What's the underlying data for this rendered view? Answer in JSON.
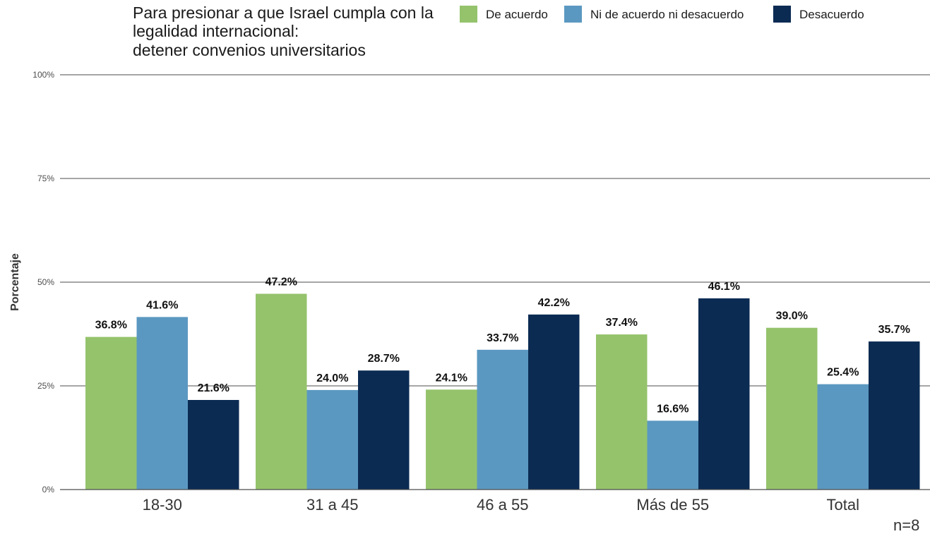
{
  "chart_data": {
    "type": "bar",
    "title_lines": [
      "Para presionar a que Israel cumpla con la",
      "legalidad internacional:",
      "detener convenios universitarios"
    ],
    "ylabel": "Porcentaje",
    "xlabel": "",
    "ylim": [
      0,
      100
    ],
    "yticks": [
      "0%",
      "25%",
      "50%",
      "75%",
      "100%"
    ],
    "ytick_values": [
      0,
      25,
      50,
      75,
      100
    ],
    "grid": true,
    "legend_position": "top",
    "categories": [
      "18-30",
      "31 a 45",
      "46 a 55",
      "Más de 55",
      "Total"
    ],
    "series": [
      {
        "name": "De acuerdo",
        "color": "#95c36c",
        "values": [
          36.8,
          47.2,
          24.1,
          37.4,
          39.0
        ],
        "labels": [
          "36.8%",
          "47.2%",
          "24.1%",
          "37.4%",
          "39.0%"
        ]
      },
      {
        "name": "Ni de acuerdo ni desacuerdo",
        "color": "#5b98c1",
        "values": [
          41.6,
          24.0,
          33.7,
          16.6,
          25.4
        ],
        "labels": [
          "41.6%",
          "24.0%",
          "33.7%",
          "16.6%",
          "25.4%"
        ]
      },
      {
        "name": "Desacuerdo",
        "color": "#0b2b53",
        "values": [
          21.6,
          28.7,
          42.2,
          46.1,
          35.7
        ],
        "labels": [
          "21.6%",
          "28.7%",
          "42.2%",
          "46.1%",
          "35.7%"
        ]
      }
    ],
    "caption": "n=8"
  }
}
